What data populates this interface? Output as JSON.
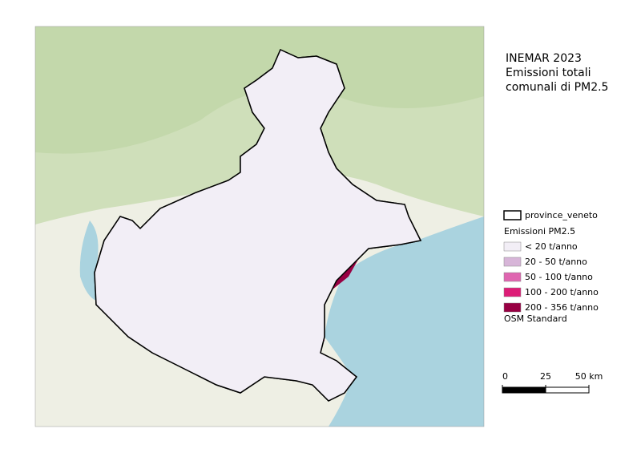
{
  "title": [
    "INEMAR 2023",
    "Emissioni totali",
    "comunali di PM2.5"
  ],
  "legend": {
    "boundary": "province_veneto",
    "group": "Emissioni PM2.5",
    "classes": [
      {
        "label": "< 20 t/anno",
        "color": "#f2eef6"
      },
      {
        "label": "20 - 50 t/anno",
        "color": "#d7b5d8"
      },
      {
        "label": "50 - 100 t/anno",
        "color": "#df65b0"
      },
      {
        "label": "100 - 200 t/anno",
        "color": "#dd1c77"
      },
      {
        "label": "200 - 356 t/anno",
        "color": "#980043"
      }
    ],
    "basemap": "OSM Standard"
  },
  "scale_bar": {
    "ticks": [
      0,
      25,
      {
        "value": 50,
        "label": "50 km"
      }
    ]
  }
}
